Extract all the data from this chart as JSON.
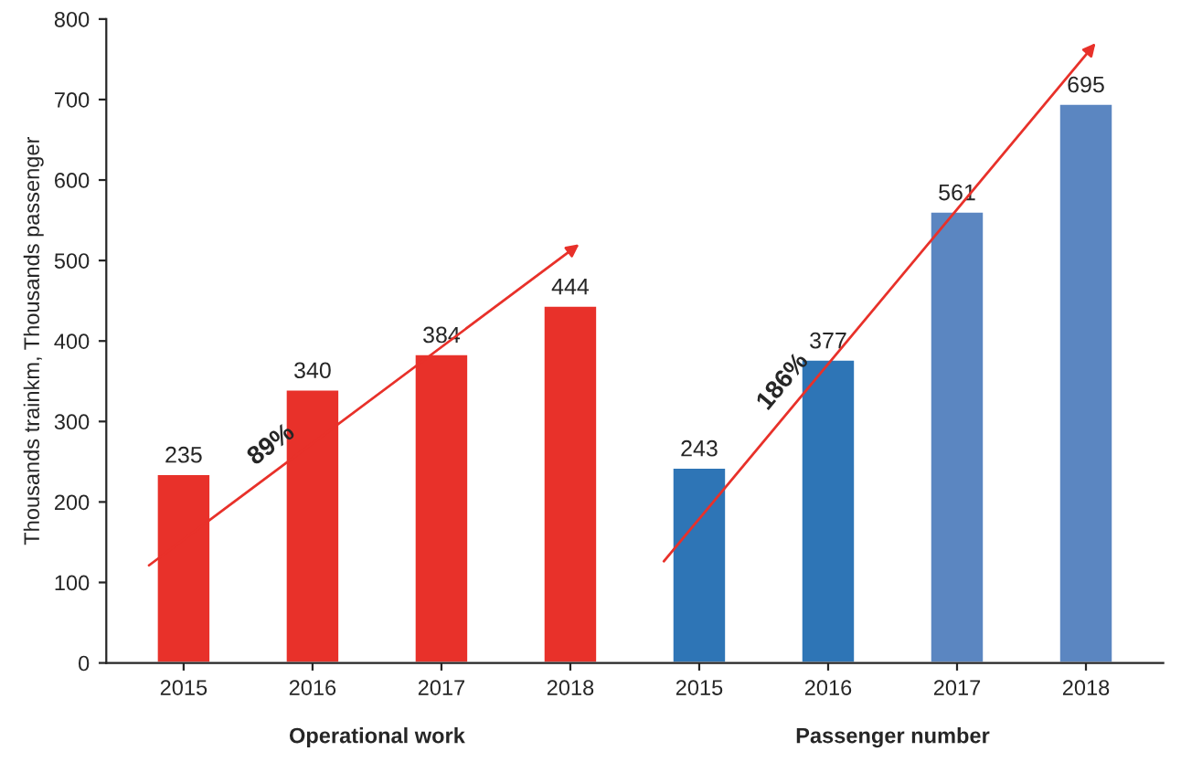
{
  "chart_data": {
    "type": "bar",
    "ylabel": "Thousands trainkm, Thousands passenger",
    "categories": [
      "2015",
      "2016",
      "2017",
      "2018",
      "2015",
      "2016",
      "2017",
      "2018"
    ],
    "values": [
      235,
      340,
      384,
      444,
      243,
      377,
      561,
      695
    ],
    "colors": [
      "#e8312a",
      "#e8312a",
      "#e8312a",
      "#e8312a",
      "#2e75b6",
      "#2e75b6",
      "#5b86c1",
      "#5b86c1"
    ],
    "ylim": [
      0,
      800
    ],
    "yticks": [
      0,
      100,
      200,
      300,
      400,
      500,
      600,
      700,
      800
    ],
    "data_labels": true,
    "grid": false,
    "annotations": [
      "Operational work",
      "Passenger number",
      "89%",
      "186%"
    ]
  }
}
